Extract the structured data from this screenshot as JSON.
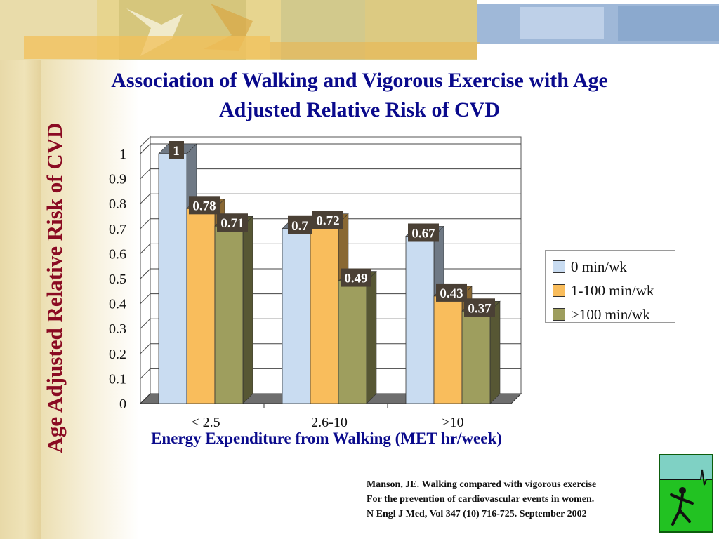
{
  "slide": {
    "title_line1": "Association of Walking and Vigorous Exercise with Age",
    "title_line2": "Adjusted Relative Risk of CVD",
    "citation": [
      "Manson, JE. Walking compared with vigorous exercise",
      "For the prevention of cardiovascular events in women.",
      "N Engl J Med, Vol 347 (10) 716-725. September 2002"
    ]
  },
  "chart_data": {
    "type": "bar",
    "xlabel": "Energy Expenditure from Walking (MET hr/week)",
    "ylabel": "Age Adjusted Relative Risk of CVD",
    "categories": [
      "< 2.5",
      "2.6-10",
      ">10"
    ],
    "series": [
      {
        "name": "0 min/wk",
        "values": [
          1,
          0.7,
          0.67
        ],
        "color": "#c9dcf1"
      },
      {
        "name": "1-100 min/wk",
        "values": [
          0.78,
          0.72,
          0.43
        ],
        "color": "#f9bd5c"
      },
      {
        "name": ">100 min/wk",
        "values": [
          0.71,
          0.49,
          0.37
        ],
        "color": "#9e9e5e"
      }
    ],
    "data_labels": [
      [
        "1",
        "0.78",
        "0.71"
      ],
      [
        "0.7",
        "0.72",
        "0.49"
      ],
      [
        "0.67",
        "0.43",
        "0.37"
      ]
    ],
    "ylim": [
      0,
      1
    ],
    "yticks": [
      "0",
      "0.1",
      "0.2",
      "0.3",
      "0.4",
      "0.5",
      "0.6",
      "0.7",
      "0.8",
      "0.9",
      "1"
    ],
    "grid": true,
    "legend_position": "right",
    "style": "3d-bar",
    "colors": {
      "title": "#0a0a8c",
      "y_title": "#8a0a22",
      "data_label_bg": "#4a4035"
    }
  }
}
